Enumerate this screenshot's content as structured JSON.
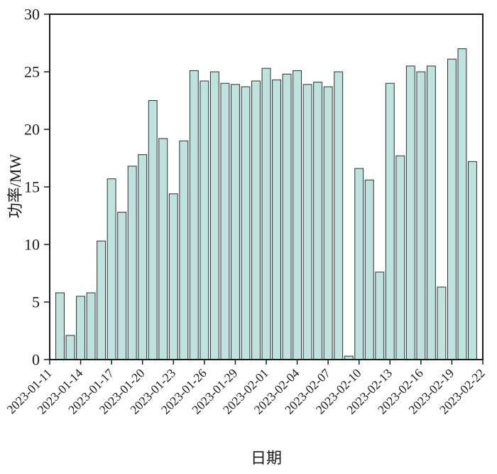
{
  "chart_data": {
    "type": "bar",
    "title": "",
    "xlabel": "日期",
    "ylabel": "功率/MW",
    "ylim": [
      0,
      30
    ],
    "yticks": [
      0,
      5,
      10,
      15,
      20,
      25,
      30
    ],
    "x_tick_every_days": 3,
    "grid": false,
    "legend_position": "none",
    "bar_color": "#bee3df",
    "bar_edge_color": "#2e2e2e",
    "axis_color": "#1a1a1a",
    "categories": [
      "2023-01-11",
      "2023-01-12",
      "2023-01-13",
      "2023-01-14",
      "2023-01-15",
      "2023-01-16",
      "2023-01-17",
      "2023-01-18",
      "2023-01-19",
      "2023-01-20",
      "2023-01-21",
      "2023-01-22",
      "2023-01-23",
      "2023-01-24",
      "2023-01-25",
      "2023-01-26",
      "2023-01-27",
      "2023-01-28",
      "2023-01-29",
      "2023-01-30",
      "2023-01-31",
      "2023-02-01",
      "2023-02-02",
      "2023-02-03",
      "2023-02-04",
      "2023-02-05",
      "2023-02-06",
      "2023-02-07",
      "2023-02-08",
      "2023-02-09",
      "2023-02-10",
      "2023-02-11",
      "2023-02-12",
      "2023-02-13",
      "2023-02-14",
      "2023-02-15",
      "2023-02-16",
      "2023-02-17",
      "2023-02-18",
      "2023-02-19",
      "2023-02-20",
      "2023-02-21",
      "2023-02-22"
    ],
    "values": [
      null,
      5.8,
      2.1,
      5.5,
      5.8,
      10.3,
      15.7,
      12.8,
      16.8,
      17.8,
      22.5,
      19.2,
      14.4,
      19.0,
      25.1,
      24.2,
      25.0,
      24.0,
      23.9,
      23.7,
      24.2,
      25.3,
      24.3,
      24.8,
      25.1,
      23.9,
      24.1,
      23.7,
      25.0,
      0.3,
      16.6,
      15.6,
      7.6,
      24.0,
      17.7,
      25.5,
      25.0,
      25.5,
      6.3,
      26.1,
      27.0,
      17.2,
      null
    ]
  }
}
